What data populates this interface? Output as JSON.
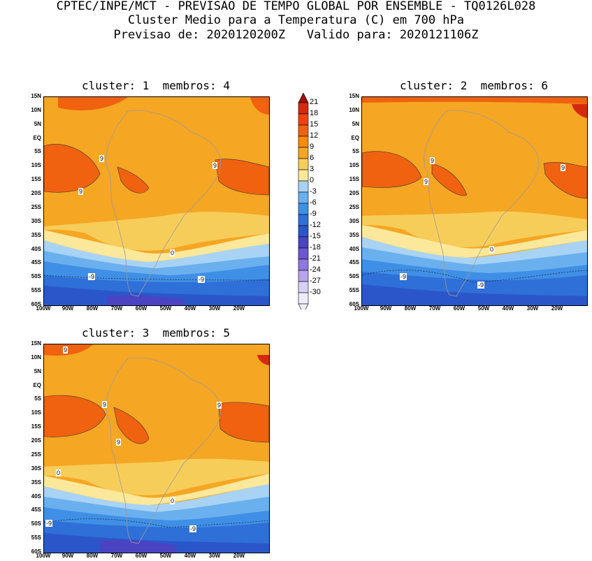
{
  "header": {
    "line1": "CPTEC/INPE/MCT - PREVISAO DE TEMPO GLOBAL POR ENSEMBLE - TQ0126L028",
    "line2": "Cluster Medio para a Temperatura (C) em 700 hPa",
    "line3": "Previsao de: 2020120200Z   Valido para: 2020121106Z"
  },
  "panels": [
    {
      "title": "cluster: 1  membros: 4"
    },
    {
      "title": "cluster: 2  membros: 6"
    },
    {
      "title": "cluster: 3  membros: 5"
    }
  ],
  "axes": {
    "lat_labels": [
      "15N",
      "10N",
      "5N",
      "EQ",
      "5S",
      "10S",
      "15S",
      "20S",
      "25S",
      "30S",
      "35S",
      "40S",
      "45S",
      "50S",
      "55S",
      "60S"
    ],
    "lon_labels": [
      "100W",
      "90W",
      "80W",
      "70W",
      "60W",
      "50W",
      "40W",
      "30W",
      "20W"
    ]
  },
  "colorbar": {
    "labels": [
      "21",
      "18",
      "15",
      "12",
      "9",
      "6",
      "3",
      "0",
      "-3",
      "-6",
      "-9",
      "-12",
      "-15",
      "-18",
      "-21",
      "-24",
      "-27",
      "-30"
    ],
    "colors": [
      "#a50d0d",
      "#d52a10",
      "#f0420f",
      "#f0620f",
      "#fa8a0a",
      "#f5a623",
      "#f7cd5a",
      "#fbe89a",
      "#a8d3f5",
      "#6bb0ee",
      "#3f8fe6",
      "#2f6fd8",
      "#2b56c9",
      "#4a44c2",
      "#6d55d3",
      "#8f78e0",
      "#b7a4ec",
      "#d9d0f6",
      "#efebfb"
    ]
  },
  "contour_labels": {
    "p1": [
      "9",
      "9",
      "9",
      "0",
      "-9",
      "-9"
    ],
    "p2": [
      "9",
      "9",
      "9",
      "0",
      "-9",
      "-9"
    ],
    "p3": [
      "9",
      "9",
      "9",
      "9",
      "0",
      "0",
      "-9",
      "-9"
    ]
  }
}
